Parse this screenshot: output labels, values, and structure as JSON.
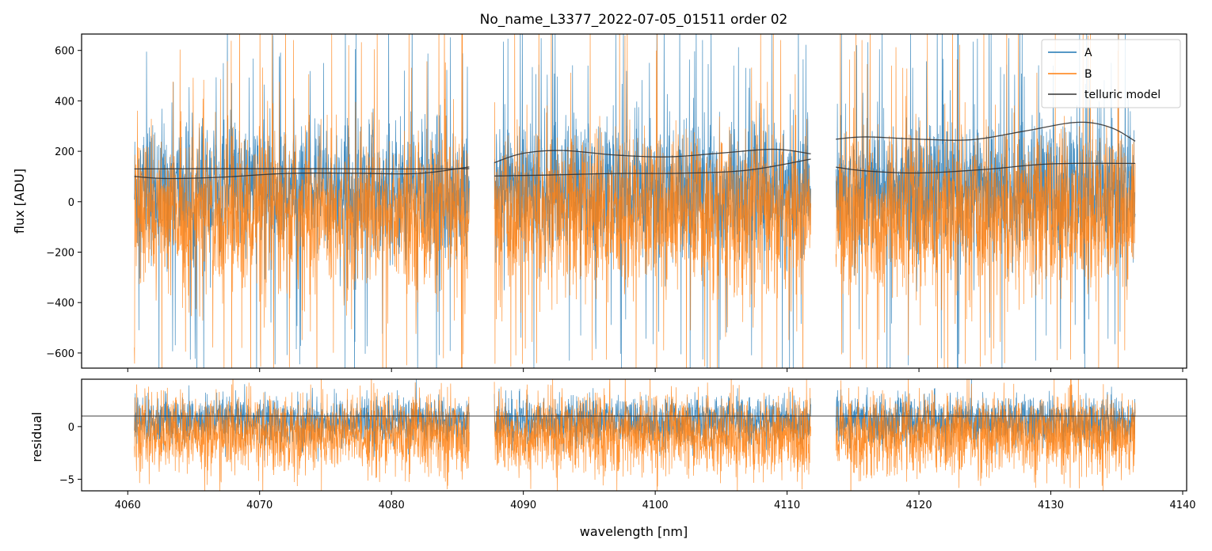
{
  "chart_data": [
    {
      "panel": "top",
      "type": "line",
      "title": "No_name_L3377_2022-07-05_01511  order 02",
      "xlabel": "",
      "ylabel": "flux [ADU]",
      "xlim": [
        4056.5,
        4140.3
      ],
      "ylim": [
        -660,
        665
      ],
      "xticks": [
        4060,
        4070,
        4080,
        4090,
        4100,
        4110,
        4120,
        4130,
        4140
      ],
      "yticks": [
        -600,
        -400,
        -200,
        0,
        200,
        400,
        600
      ],
      "ytick_labels": [
        "−600",
        "−400",
        "−200",
        "0",
        "200",
        "400",
        "600"
      ],
      "grid": false,
      "legend": {
        "location": "upper-right",
        "entries": [
          {
            "label": "A",
            "color": "#1f77b4"
          },
          {
            "label": "B",
            "color": "#ff7f0e"
          },
          {
            "label": "telluric model",
            "color": "#333333"
          }
        ]
      },
      "segments": [
        {
          "x_range": [
            4060.5,
            4085.9
          ],
          "gap_after": true
        },
        {
          "x_range": [
            4087.8,
            4111.8
          ],
          "gap_after": true
        },
        {
          "x_range": [
            4113.7,
            4136.4
          ],
          "gap_after": false
        }
      ],
      "series": [
        {
          "name": "A",
          "color": "#1f77b4",
          "description_values": {
            "typical_center": 60,
            "typical_spread": [
              -250,
              350
            ],
            "spike_max": 665
          }
        },
        {
          "name": "B",
          "color": "#ff7f0e",
          "description_values": {
            "typical_center": -30,
            "typical_spread": [
              -400,
              300
            ],
            "spike_max": 665
          }
        },
        {
          "name": "telluric model",
          "color": "#333333",
          "curves": [
            {
              "x": [
                4060.5,
                4063,
                4067,
                4072,
                4077,
                4082,
                4085.9
              ],
              "y": [
                100,
                92,
                97,
                112,
                113,
                112,
                138
              ]
            },
            {
              "x": [
                4060.5,
                4065,
                4070,
                4075,
                4080,
                4085.9
              ],
              "y": [
                130,
                131,
                131,
                131,
                130,
                131
              ]
            },
            {
              "x": [
                4087.8,
                4090,
                4093,
                4097,
                4101,
                4105,
                4109,
                4111.8
              ],
              "y": [
                155,
                192,
                203,
                185,
                178,
                193,
                208,
                190
              ]
            },
            {
              "x": [
                4087.8,
                4092,
                4097,
                4102,
                4107,
                4111.8
              ],
              "y": [
                102,
                106,
                112,
                113,
                125,
                169
              ]
            },
            {
              "x": [
                4113.7,
                4116,
                4120,
                4124,
                4128,
                4132,
                4134.5,
                4136.4
              ],
              "y": [
                248,
                257,
                248,
                246,
                280,
                315,
                295,
                240
              ]
            },
            {
              "x": [
                4113.7,
                4116,
                4120,
                4125,
                4130,
                4136.4
              ],
              "y": [
                137,
                122,
                114,
                128,
                150,
                152
              ]
            }
          ]
        }
      ]
    },
    {
      "panel": "bottom",
      "type": "line",
      "title": "",
      "xlabel": "wavelength [nm]",
      "ylabel": "residual",
      "xlim": [
        4056.5,
        4140.3
      ],
      "ylim": [
        -6.1,
        4.5
      ],
      "xticks": [
        4060,
        4070,
        4080,
        4090,
        4100,
        4110,
        4120,
        4130,
        4140
      ],
      "xtick_labels": [
        "4060",
        "4070",
        "4080",
        "4090",
        "4100",
        "4110",
        "4120",
        "4130",
        "4140"
      ],
      "yticks": [
        -5,
        0
      ],
      "ytick_labels": [
        "−5",
        "0"
      ],
      "reference_line_y": 1.0,
      "grid": false,
      "series": [
        {
          "name": "A",
          "color": "#1f77b4",
          "description_values": {
            "typical_center": 0.8,
            "typical_spread": [
              -2,
              3
            ]
          }
        },
        {
          "name": "B",
          "color": "#ff7f0e",
          "description_values": {
            "typical_center": -0.5,
            "typical_spread": [
              -5,
              3.5
            ]
          }
        }
      ]
    }
  ]
}
